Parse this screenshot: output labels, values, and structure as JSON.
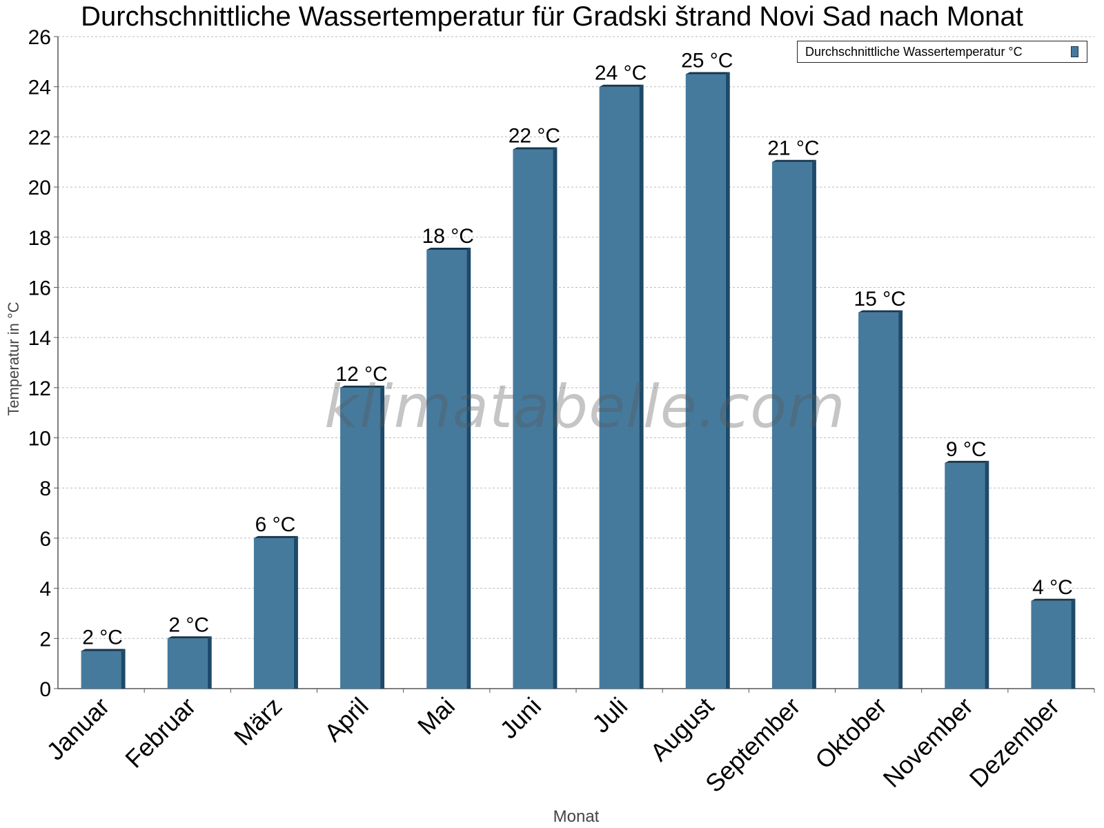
{
  "page": {
    "title": "Durchschnittliche Wassertemperatur für Gradski štrand Novi Sad nach Monat",
    "watermark": "klimatabelle.com"
  },
  "chart_data": {
    "type": "bar",
    "title": "Durchschnittliche Wassertemperatur für Gradski štrand Novi Sad nach Monat",
    "xlabel": "Monat",
    "ylabel": "Temperatur in °C",
    "categories": [
      "Januar",
      "Februar",
      "März",
      "April",
      "Mai",
      "Juni",
      "Juli",
      "August",
      "September",
      "Oktober",
      "November",
      "Dezember"
    ],
    "series": [
      {
        "name": "Durchschnittliche Wassertemperatur °C",
        "values": [
          1.5,
          2.0,
          6.0,
          12.0,
          17.5,
          21.5,
          24.0,
          24.5,
          21.0,
          15.0,
          9.0,
          3.5
        ],
        "data_labels": [
          "2 °C",
          "2 °C",
          "6 °C",
          "12 °C",
          "18 °C",
          "22 °C",
          "24 °C",
          "25 °C",
          "21 °C",
          "15 °C",
          "9 °C",
          "4 °C"
        ]
      }
    ],
    "ylim": [
      0,
      26
    ],
    "yticks": [
      0,
      2,
      4,
      6,
      8,
      10,
      12,
      14,
      16,
      18,
      20,
      22,
      24,
      26
    ],
    "grid": true,
    "legend_position": "top-right",
    "colors": {
      "bar_face": "#467a9d",
      "bar_side": "#1d4a6b",
      "bar_top": "#14374f",
      "grid": "#bbbbbb",
      "axis": "#555555"
    }
  }
}
